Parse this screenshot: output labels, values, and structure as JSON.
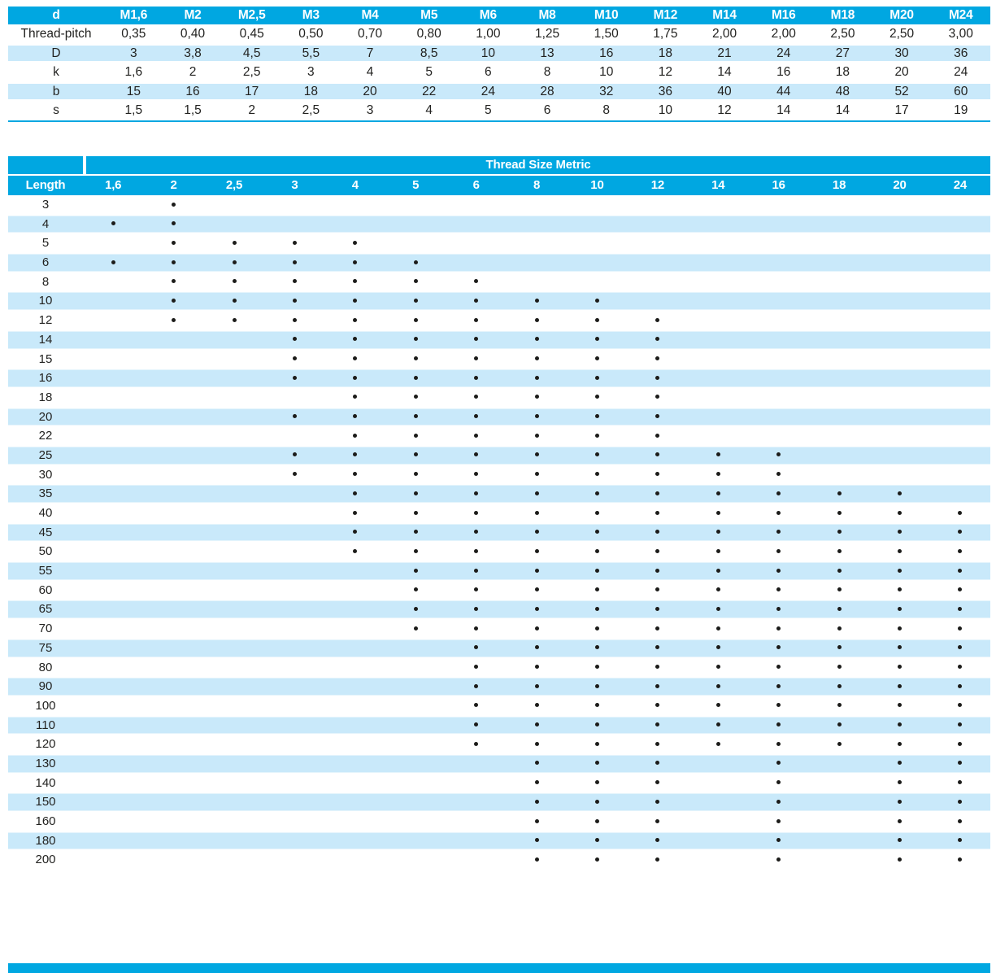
{
  "colors": {
    "accent": "#00a7e1",
    "row_stripe": "#c9e9fa",
    "header_text": "#ffffff",
    "body_text": "#222220",
    "dot": "#1c1c1a"
  },
  "dimensions_table": {
    "corner_label": "d",
    "columns": [
      "M1,6",
      "M2",
      "M2,5",
      "M3",
      "M4",
      "M5",
      "M6",
      "M8",
      "M10",
      "M12",
      "M14",
      "M16",
      "M18",
      "M20",
      "M24"
    ],
    "rows": [
      {
        "label": "Thread-pitch",
        "values": [
          "0,35",
          "0,40",
          "0,45",
          "0,50",
          "0,70",
          "0,80",
          "1,00",
          "1,25",
          "1,50",
          "1,75",
          "2,00",
          "2,00",
          "2,50",
          "2,50",
          "3,00"
        ],
        "striped": false
      },
      {
        "label": "D",
        "values": [
          "3",
          "3,8",
          "4,5",
          "5,5",
          "7",
          "8,5",
          "10",
          "13",
          "16",
          "18",
          "21",
          "24",
          "27",
          "30",
          "36"
        ],
        "striped": true
      },
      {
        "label": "k",
        "values": [
          "1,6",
          "2",
          "2,5",
          "3",
          "4",
          "5",
          "6",
          "8",
          "10",
          "12",
          "14",
          "16",
          "18",
          "20",
          "24"
        ],
        "striped": false
      },
      {
        "label": "b",
        "values": [
          "15",
          "16",
          "17",
          "18",
          "20",
          "22",
          "24",
          "28",
          "32",
          "36",
          "40",
          "44",
          "48",
          "52",
          "60"
        ],
        "striped": true
      },
      {
        "label": "s",
        "values": [
          "1,5",
          "1,5",
          "2",
          "2,5",
          "3",
          "4",
          "5",
          "6",
          "8",
          "10",
          "12",
          "14",
          "14",
          "17",
          "19"
        ],
        "striped": false
      }
    ]
  },
  "availability_table": {
    "title": "Thread Size Metric",
    "length_label": "Length",
    "sizes": [
      "1,6",
      "2",
      "2,5",
      "3",
      "4",
      "5",
      "6",
      "8",
      "10",
      "12",
      "14",
      "16",
      "18",
      "20",
      "24"
    ],
    "rows": [
      {
        "length": "3",
        "dots": [
          0,
          1,
          0,
          0,
          0,
          0,
          0,
          0,
          0,
          0,
          0,
          0,
          0,
          0,
          0
        ]
      },
      {
        "length": "4",
        "dots": [
          1,
          1,
          0,
          0,
          0,
          0,
          0,
          0,
          0,
          0,
          0,
          0,
          0,
          0,
          0
        ]
      },
      {
        "length": "5",
        "dots": [
          0,
          1,
          1,
          1,
          1,
          0,
          0,
          0,
          0,
          0,
          0,
          0,
          0,
          0,
          0
        ]
      },
      {
        "length": "6",
        "dots": [
          1,
          1,
          1,
          1,
          1,
          1,
          0,
          0,
          0,
          0,
          0,
          0,
          0,
          0,
          0
        ]
      },
      {
        "length": "8",
        "dots": [
          0,
          1,
          1,
          1,
          1,
          1,
          1,
          0,
          0,
          0,
          0,
          0,
          0,
          0,
          0
        ]
      },
      {
        "length": "10",
        "dots": [
          0,
          1,
          1,
          1,
          1,
          1,
          1,
          1,
          1,
          0,
          0,
          0,
          0,
          0,
          0
        ]
      },
      {
        "length": "12",
        "dots": [
          0,
          1,
          1,
          1,
          1,
          1,
          1,
          1,
          1,
          1,
          0,
          0,
          0,
          0,
          0
        ]
      },
      {
        "length": "14",
        "dots": [
          0,
          0,
          0,
          1,
          1,
          1,
          1,
          1,
          1,
          1,
          0,
          0,
          0,
          0,
          0
        ]
      },
      {
        "length": "15",
        "dots": [
          0,
          0,
          0,
          1,
          1,
          1,
          1,
          1,
          1,
          1,
          0,
          0,
          0,
          0,
          0
        ]
      },
      {
        "length": "16",
        "dots": [
          0,
          0,
          0,
          1,
          1,
          1,
          1,
          1,
          1,
          1,
          0,
          0,
          0,
          0,
          0
        ]
      },
      {
        "length": "18",
        "dots": [
          0,
          0,
          0,
          0,
          1,
          1,
          1,
          1,
          1,
          1,
          0,
          0,
          0,
          0,
          0
        ]
      },
      {
        "length": "20",
        "dots": [
          0,
          0,
          0,
          1,
          1,
          1,
          1,
          1,
          1,
          1,
          0,
          0,
          0,
          0,
          0
        ]
      },
      {
        "length": "22",
        "dots": [
          0,
          0,
          0,
          0,
          1,
          1,
          1,
          1,
          1,
          1,
          0,
          0,
          0,
          0,
          0
        ]
      },
      {
        "length": "25",
        "dots": [
          0,
          0,
          0,
          1,
          1,
          1,
          1,
          1,
          1,
          1,
          1,
          1,
          0,
          0,
          0
        ]
      },
      {
        "length": "30",
        "dots": [
          0,
          0,
          0,
          1,
          1,
          1,
          1,
          1,
          1,
          1,
          1,
          1,
          0,
          0,
          0
        ]
      },
      {
        "length": "35",
        "dots": [
          0,
          0,
          0,
          0,
          1,
          1,
          1,
          1,
          1,
          1,
          1,
          1,
          1,
          1,
          0
        ]
      },
      {
        "length": "40",
        "dots": [
          0,
          0,
          0,
          0,
          1,
          1,
          1,
          1,
          1,
          1,
          1,
          1,
          1,
          1,
          1
        ]
      },
      {
        "length": "45",
        "dots": [
          0,
          0,
          0,
          0,
          1,
          1,
          1,
          1,
          1,
          1,
          1,
          1,
          1,
          1,
          1
        ]
      },
      {
        "length": "50",
        "dots": [
          0,
          0,
          0,
          0,
          1,
          1,
          1,
          1,
          1,
          1,
          1,
          1,
          1,
          1,
          1
        ]
      },
      {
        "length": "55",
        "dots": [
          0,
          0,
          0,
          0,
          0,
          1,
          1,
          1,
          1,
          1,
          1,
          1,
          1,
          1,
          1
        ]
      },
      {
        "length": "60",
        "dots": [
          0,
          0,
          0,
          0,
          0,
          1,
          1,
          1,
          1,
          1,
          1,
          1,
          1,
          1,
          1
        ]
      },
      {
        "length": "65",
        "dots": [
          0,
          0,
          0,
          0,
          0,
          1,
          1,
          1,
          1,
          1,
          1,
          1,
          1,
          1,
          1
        ]
      },
      {
        "length": "70",
        "dots": [
          0,
          0,
          0,
          0,
          0,
          1,
          1,
          1,
          1,
          1,
          1,
          1,
          1,
          1,
          1
        ]
      },
      {
        "length": "75",
        "dots": [
          0,
          0,
          0,
          0,
          0,
          0,
          1,
          1,
          1,
          1,
          1,
          1,
          1,
          1,
          1
        ]
      },
      {
        "length": "80",
        "dots": [
          0,
          0,
          0,
          0,
          0,
          0,
          1,
          1,
          1,
          1,
          1,
          1,
          1,
          1,
          1
        ]
      },
      {
        "length": "90",
        "dots": [
          0,
          0,
          0,
          0,
          0,
          0,
          1,
          1,
          1,
          1,
          1,
          1,
          1,
          1,
          1
        ]
      },
      {
        "length": "100",
        "dots": [
          0,
          0,
          0,
          0,
          0,
          0,
          1,
          1,
          1,
          1,
          1,
          1,
          1,
          1,
          1
        ]
      },
      {
        "length": "110",
        "dots": [
          0,
          0,
          0,
          0,
          0,
          0,
          1,
          1,
          1,
          1,
          1,
          1,
          1,
          1,
          1
        ]
      },
      {
        "length": "120",
        "dots": [
          0,
          0,
          0,
          0,
          0,
          0,
          1,
          1,
          1,
          1,
          1,
          1,
          1,
          1,
          1
        ]
      },
      {
        "length": "130",
        "dots": [
          0,
          0,
          0,
          0,
          0,
          0,
          0,
          1,
          1,
          1,
          0,
          1,
          0,
          1,
          1
        ]
      },
      {
        "length": "140",
        "dots": [
          0,
          0,
          0,
          0,
          0,
          0,
          0,
          1,
          1,
          1,
          0,
          1,
          0,
          1,
          1
        ]
      },
      {
        "length": "150",
        "dots": [
          0,
          0,
          0,
          0,
          0,
          0,
          0,
          1,
          1,
          1,
          0,
          1,
          0,
          1,
          1
        ]
      },
      {
        "length": "160",
        "dots": [
          0,
          0,
          0,
          0,
          0,
          0,
          0,
          1,
          1,
          1,
          0,
          1,
          0,
          1,
          1
        ]
      },
      {
        "length": "180",
        "dots": [
          0,
          0,
          0,
          0,
          0,
          0,
          0,
          1,
          1,
          1,
          0,
          1,
          0,
          1,
          1
        ]
      },
      {
        "length": "200",
        "dots": [
          0,
          0,
          0,
          0,
          0,
          0,
          0,
          1,
          1,
          1,
          0,
          1,
          0,
          1,
          1
        ]
      }
    ]
  }
}
